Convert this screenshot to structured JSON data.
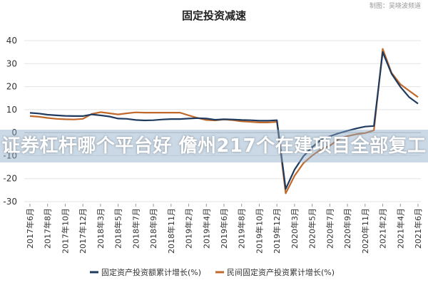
{
  "chart_data": {
    "type": "line",
    "title": "固定投资减速",
    "credit": "制图：吴晓波频道",
    "ylim": [
      -30,
      40
    ],
    "yticks": [
      40,
      30,
      20,
      10,
      0,
      -10,
      -20,
      -30
    ],
    "grid": "horizontal",
    "legend_position": "bottom",
    "tick_labels": [
      "2017年6月",
      "2017年8月",
      "2017年10月",
      "2017年12月",
      "2018年3月",
      "2018年5月",
      "2018年7月",
      "2018年9月",
      "2018年11月",
      "2019年2月",
      "2019年4月",
      "2019年6月",
      "2019年8月",
      "2019年10月",
      "2019年12月",
      "2020年3月",
      "2020年5月",
      "2020年7月",
      "2020年9月",
      "2020年11月",
      "2021年2月",
      "2021年4月",
      "2021年6月"
    ],
    "x": [
      "2017年6月",
      "2017年7月",
      "2017年8月",
      "2017年9月",
      "2017年10月",
      "2017年11月",
      "2017年12月",
      "2018年2月",
      "2018年3月",
      "2018年4月",
      "2018年5月",
      "2018年6月",
      "2018年7月",
      "2018年8月",
      "2018年9月",
      "2018年10月",
      "2018年11月",
      "2018年12月",
      "2019年2月",
      "2019年3月",
      "2019年4月",
      "2019年5月",
      "2019年6月",
      "2019年7月",
      "2019年8月",
      "2019年9月",
      "2019年10月",
      "2019年11月",
      "2019年12月",
      "2020年2月",
      "2020年3月",
      "2020年4月",
      "2020年5月",
      "2020年6月",
      "2020年7月",
      "2020年8月",
      "2020年9月",
      "2020年10月",
      "2020年11月",
      "2020年12月",
      "2021年2月",
      "2021年3月",
      "2021年4月",
      "2021年5月",
      "2021年6月"
    ],
    "series": [
      {
        "name": "固定资产投资额累计增长(%)",
        "color": "#1f3a5f",
        "values": [
          8.6,
          8.3,
          7.8,
          7.5,
          7.3,
          7.2,
          7.2,
          7.9,
          7.5,
          7.0,
          6.1,
          6.0,
          5.5,
          5.3,
          5.4,
          5.7,
          5.9,
          5.9,
          6.1,
          6.3,
          6.1,
          5.6,
          5.8,
          5.7,
          5.5,
          5.4,
          5.2,
          5.2,
          5.4,
          -24.5,
          -16.1,
          -10.3,
          -6.3,
          -3.1,
          -1.6,
          -0.3,
          0.8,
          1.8,
          2.6,
          2.9,
          35.0,
          25.6,
          19.9,
          15.4,
          12.6
        ]
      },
      {
        "name": "民间固定资产投资累计增长(%)",
        "color": "#c0692b",
        "values": [
          7.2,
          6.9,
          6.4,
          6.0,
          5.8,
          5.7,
          6.0,
          8.1,
          8.9,
          8.4,
          7.9,
          8.4,
          8.8,
          8.7,
          8.7,
          8.7,
          8.7,
          8.7,
          7.5,
          6.4,
          5.5,
          5.3,
          5.7,
          5.4,
          4.9,
          4.7,
          4.4,
          4.4,
          4.7,
          -26.4,
          -18.8,
          -13.3,
          -10.0,
          -7.3,
          -5.7,
          -2.8,
          -1.5,
          -0.7,
          -0.2,
          1.0,
          36.4,
          26.0,
          21.0,
          18.2,
          15.4
        ]
      }
    ]
  },
  "overlay": {
    "text": "证券杠杆哪个平台好 儋州217个在建项目全部复工"
  }
}
